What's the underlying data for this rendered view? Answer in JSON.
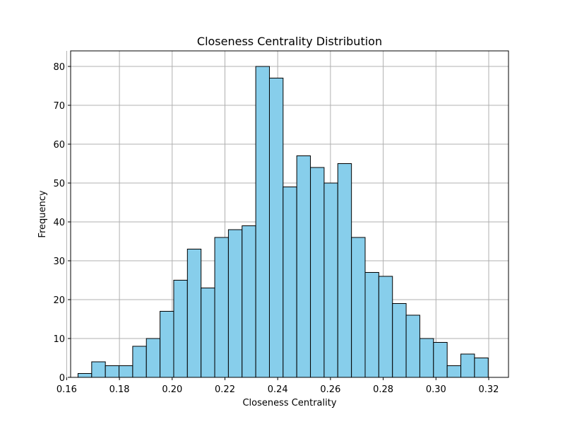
{
  "chart_data": {
    "type": "bar",
    "title": "Closeness Centrality Distribution",
    "xlabel": "Closeness Centrality",
    "ylabel": "Frequency",
    "xlim": [
      0.1615,
      0.3275
    ],
    "ylim": [
      0,
      84
    ],
    "x_ticks": [
      "0.16",
      "0.18",
      "0.20",
      "0.22",
      "0.24",
      "0.26",
      "0.28",
      "0.30",
      "0.32"
    ],
    "x_tick_values": [
      0.16,
      0.18,
      0.2,
      0.22,
      0.24,
      0.26,
      0.28,
      0.3,
      0.32
    ],
    "y_ticks": [
      "0",
      "10",
      "20",
      "30",
      "40",
      "50",
      "60",
      "70",
      "80"
    ],
    "y_tick_values": [
      0,
      10,
      20,
      30,
      40,
      50,
      60,
      70,
      80
    ],
    "grid": true,
    "bin_start": 0.1643,
    "bin_end": 0.3198,
    "bar_color": "#87ceeb",
    "edge_color": "#000000",
    "grid_color": "#b0b0b0",
    "values": [
      1,
      4,
      3,
      3,
      8,
      10,
      17,
      25,
      33,
      23,
      36,
      38,
      39,
      80,
      77,
      49,
      57,
      54,
      50,
      55,
      36,
      27,
      26,
      19,
      16,
      10,
      9,
      3,
      6,
      5
    ]
  }
}
